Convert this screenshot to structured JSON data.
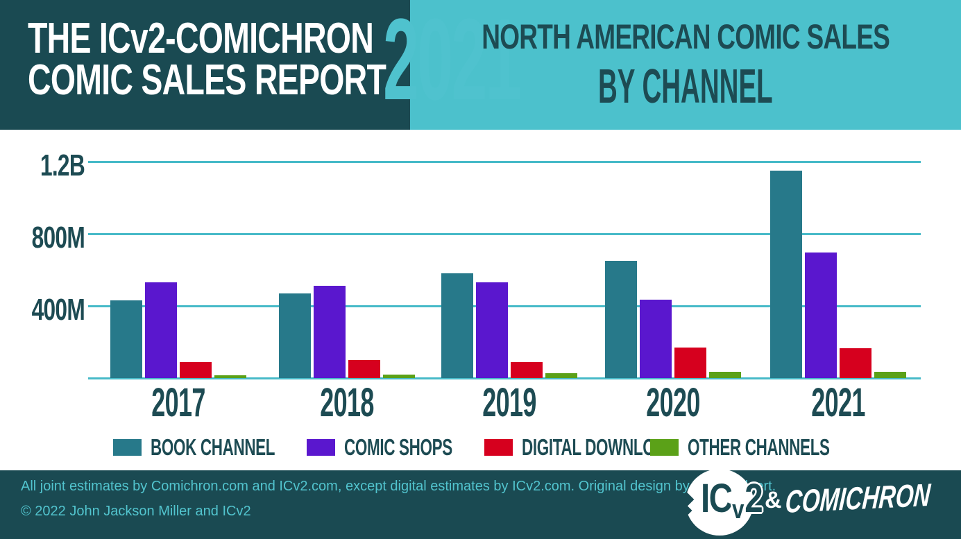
{
  "colors": {
    "dark_teal_bg": "#1A4A52",
    "light_teal_bg": "#4CC1CC",
    "header_year_text": "#4FC2CE",
    "gridline": "#47BAC8",
    "axis_text": "#1D4B53",
    "footer_text": "#52C4CE",
    "book_channel": "#27798A",
    "comic_shops": "#5A17CE",
    "digital_download": "#D6001E",
    "other_channels": "#5BA118"
  },
  "header": {
    "title_line1": "THE ICv2-COMICHRON",
    "title_line2": "COMIC SALES REPORT",
    "year": "2021",
    "right_title": "NORTH AMERICAN COMIC SALES",
    "right_subtitle": "BY CHANNEL"
  },
  "chart_data": {
    "type": "bar",
    "title": "North American Comic Sales by Channel",
    "unit": "USD, millions (estimated from gridlines)",
    "categories": [
      "2017",
      "2018",
      "2019",
      "2020",
      "2021"
    ],
    "series": [
      {
        "name": "BOOK CHANNEL",
        "color": "#27798A",
        "values": [
          430,
          470,
          580,
          650,
          1150
        ]
      },
      {
        "name": "COMIC SHOPS",
        "color": "#5A17CE",
        "values": [
          530,
          510,
          530,
          435,
          695
        ]
      },
      {
        "name": "DIGITAL DOWNLOAD",
        "color": "#D6001E",
        "values": [
          90,
          100,
          90,
          170,
          165
        ]
      },
      {
        "name": "OTHER CHANNELS",
        "color": "#5BA118",
        "values": [
          15,
          20,
          25,
          35,
          33
        ]
      }
    ],
    "y_axis": {
      "ticks": [
        {
          "label": "1.2B",
          "value": 1200
        },
        {
          "label": "800M",
          "value": 800
        },
        {
          "label": "400M",
          "value": 400
        }
      ],
      "ylim": [
        0,
        1240
      ],
      "baseline_value": 0
    },
    "grid": true,
    "legend_position": "bottom"
  },
  "footer": {
    "credit_line": "All joint estimates by Comichron.com and ICv2.com, except digital estimates by ICv2.com.  Original design by Kate Willaert.",
    "copyright_line": "© 2022 John Jackson Miller and ICv2",
    "icv2_logo": {
      "part1": "IC",
      "part2": "v",
      "part3": "2"
    },
    "separator": "&",
    "comichron_logo": "COMICHRON"
  }
}
